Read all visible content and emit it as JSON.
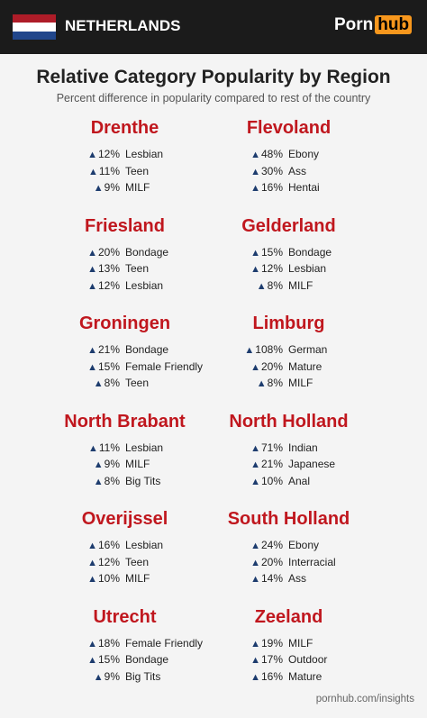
{
  "header": {
    "country": "NETHERLANDS",
    "logo_left": "Porn",
    "logo_right": "hub"
  },
  "title": "Relative Category Popularity by Region",
  "subtitle": "Percent difference in popularity compared to rest of the country",
  "regions": [
    {
      "name": "Drenthe",
      "items": [
        {
          "value": "12%",
          "category": "Lesbian"
        },
        {
          "value": "11%",
          "category": "Teen"
        },
        {
          "value": "9%",
          "category": "MILF"
        }
      ]
    },
    {
      "name": "Flevoland",
      "items": [
        {
          "value": "48%",
          "category": "Ebony"
        },
        {
          "value": "30%",
          "category": "Ass"
        },
        {
          "value": "16%",
          "category": "Hentai"
        }
      ]
    },
    {
      "name": "Friesland",
      "items": [
        {
          "value": "20%",
          "category": "Bondage"
        },
        {
          "value": "13%",
          "category": "Teen"
        },
        {
          "value": "12%",
          "category": "Lesbian"
        }
      ]
    },
    {
      "name": "Gelderland",
      "items": [
        {
          "value": "15%",
          "category": "Bondage"
        },
        {
          "value": "12%",
          "category": "Lesbian"
        },
        {
          "value": "8%",
          "category": "MILF"
        }
      ]
    },
    {
      "name": "Groningen",
      "items": [
        {
          "value": "21%",
          "category": "Bondage"
        },
        {
          "value": "15%",
          "category": "Female Friendly"
        },
        {
          "value": "8%",
          "category": "Teen"
        }
      ]
    },
    {
      "name": "Limburg",
      "items": [
        {
          "value": "108%",
          "category": "German"
        },
        {
          "value": "20%",
          "category": "Mature"
        },
        {
          "value": "8%",
          "category": "MILF"
        }
      ]
    },
    {
      "name": "North Brabant",
      "items": [
        {
          "value": "11%",
          "category": "Lesbian"
        },
        {
          "value": "9%",
          "category": "MILF"
        },
        {
          "value": "8%",
          "category": "Big Tits"
        }
      ]
    },
    {
      "name": "North Holland",
      "items": [
        {
          "value": "71%",
          "category": "Indian"
        },
        {
          "value": "21%",
          "category": "Japanese"
        },
        {
          "value": "10%",
          "category": "Anal"
        }
      ]
    },
    {
      "name": "Overijssel",
      "items": [
        {
          "value": "16%",
          "category": "Lesbian"
        },
        {
          "value": "12%",
          "category": "Teen"
        },
        {
          "value": "10%",
          "category": "MILF"
        }
      ]
    },
    {
      "name": "South Holland",
      "items": [
        {
          "value": "24%",
          "category": "Ebony"
        },
        {
          "value": "20%",
          "category": "Interracial"
        },
        {
          "value": "14%",
          "category": "Ass"
        }
      ]
    },
    {
      "name": "Utrecht",
      "items": [
        {
          "value": "18%",
          "category": "Female Friendly"
        },
        {
          "value": "15%",
          "category": "Bondage"
        },
        {
          "value": "9%",
          "category": "Big Tits"
        }
      ]
    },
    {
      "name": "Zeeland",
      "items": [
        {
          "value": "19%",
          "category": "MILF"
        },
        {
          "value": "17%",
          "category": "Outdoor"
        },
        {
          "value": "16%",
          "category": "Mature"
        }
      ]
    }
  ],
  "footer": "pornhub.com/insights"
}
